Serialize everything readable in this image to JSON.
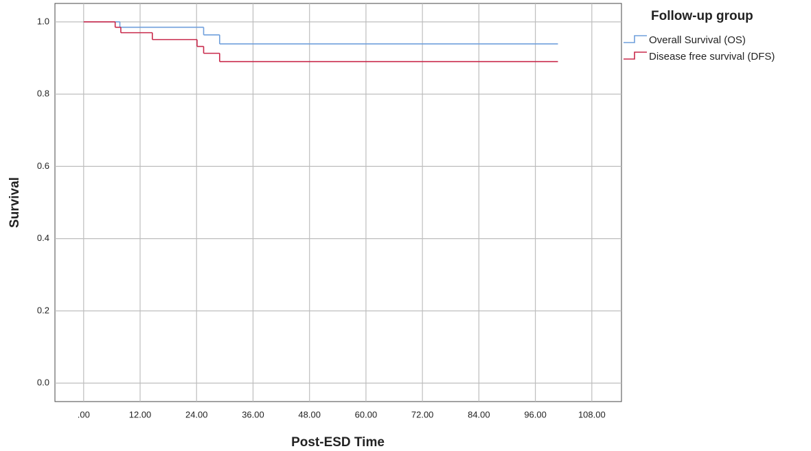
{
  "chart_data": {
    "type": "step",
    "x_label": "Post-ESD Time",
    "y_label": "Survival",
    "legend_title": "Follow-up group",
    "legend_position": "outside-top-right",
    "grid": true,
    "xlim": [
      -6.1,
      114.3
    ],
    "ylim": [
      -0.051,
      1.051
    ],
    "xticks": [
      {
        "value": 0,
        "label": ".00"
      },
      {
        "value": 12,
        "label": "12.00"
      },
      {
        "value": 24,
        "label": "24.00"
      },
      {
        "value": 36,
        "label": "36.00"
      },
      {
        "value": 48,
        "label": "48.00"
      },
      {
        "value": 60,
        "label": "60.00"
      },
      {
        "value": 72,
        "label": "72.00"
      },
      {
        "value": 84,
        "label": "84.00"
      },
      {
        "value": 96,
        "label": "96.00"
      },
      {
        "value": 108,
        "label": "108.00"
      }
    ],
    "yticks": [
      {
        "value": 0,
        "label": "0.0"
      },
      0.2,
      0.4,
      0.6,
      0.8,
      {
        "value": 1,
        "label": "1.0"
      }
    ],
    "series": [
      {
        "name": "Overall Survival (OS)",
        "color": "#6f9fdc",
        "x": [
          0,
          7.7,
          25.5,
          28.9,
          100.8
        ],
        "values": [
          1.0,
          0.985,
          0.964,
          0.939,
          0.939
        ]
      },
      {
        "name": "Disease free survival (DFS)",
        "color": "#c8284a",
        "x": [
          0,
          6.7,
          7.9,
          14.6,
          24.1,
          25.5,
          28.9,
          100.8
        ],
        "values": [
          1.0,
          0.985,
          0.97,
          0.951,
          0.932,
          0.913,
          0.89,
          0.89
        ]
      }
    ]
  }
}
